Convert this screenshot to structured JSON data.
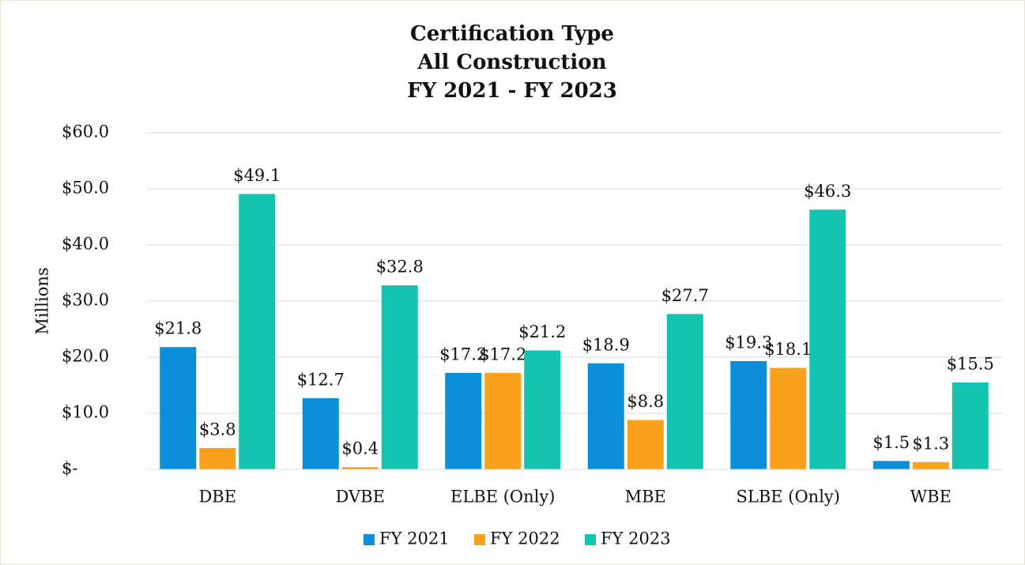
{
  "chart_data": {
    "type": "bar",
    "title": [
      "Certification Type",
      "All Construction",
      "FY 2021 - FY 2023"
    ],
    "y_label": "Millions",
    "categories": [
      "DBE",
      "DVBE",
      "ELBE (Only)",
      "MBE",
      "SLBE (Only)",
      "WBE"
    ],
    "series": [
      {
        "name": "FY 2021",
        "color": "#0a8fd8",
        "values": [
          21.8,
          12.7,
          17.2,
          18.9,
          19.3,
          1.5
        ],
        "value_labels": [
          "$21.8",
          "$12.7",
          "$17.2",
          "$18.9",
          "$19.3",
          "$1.5"
        ]
      },
      {
        "name": "FY 2022",
        "color": "#f9a11b",
        "values": [
          3.8,
          0.4,
          17.2,
          8.8,
          18.1,
          1.3
        ],
        "value_labels": [
          "$3.8",
          "$0.4",
          "$17.2",
          "$8.8",
          "$18.1",
          "$1.3"
        ]
      },
      {
        "name": "FY 2023",
        "color": "#14c4b0",
        "values": [
          49.1,
          32.8,
          21.2,
          27.7,
          46.3,
          15.5
        ],
        "value_labels": [
          "$49.1",
          "$32.8",
          "$21.2",
          "$27.7",
          "$46.3",
          "$15.5"
        ]
      }
    ],
    "ylim": [
      0,
      60
    ],
    "yticks": [
      {
        "value": 0,
        "label": "$-"
      },
      {
        "value": 10,
        "label": "$10.0"
      },
      {
        "value": 20,
        "label": "$20.0"
      },
      {
        "value": 30,
        "label": "$30.0"
      },
      {
        "value": 40,
        "label": "$40.0"
      },
      {
        "value": 50,
        "label": "$50.0"
      },
      {
        "value": 60,
        "label": "$60.0"
      }
    ],
    "grid": true,
    "legend": "bottom"
  }
}
